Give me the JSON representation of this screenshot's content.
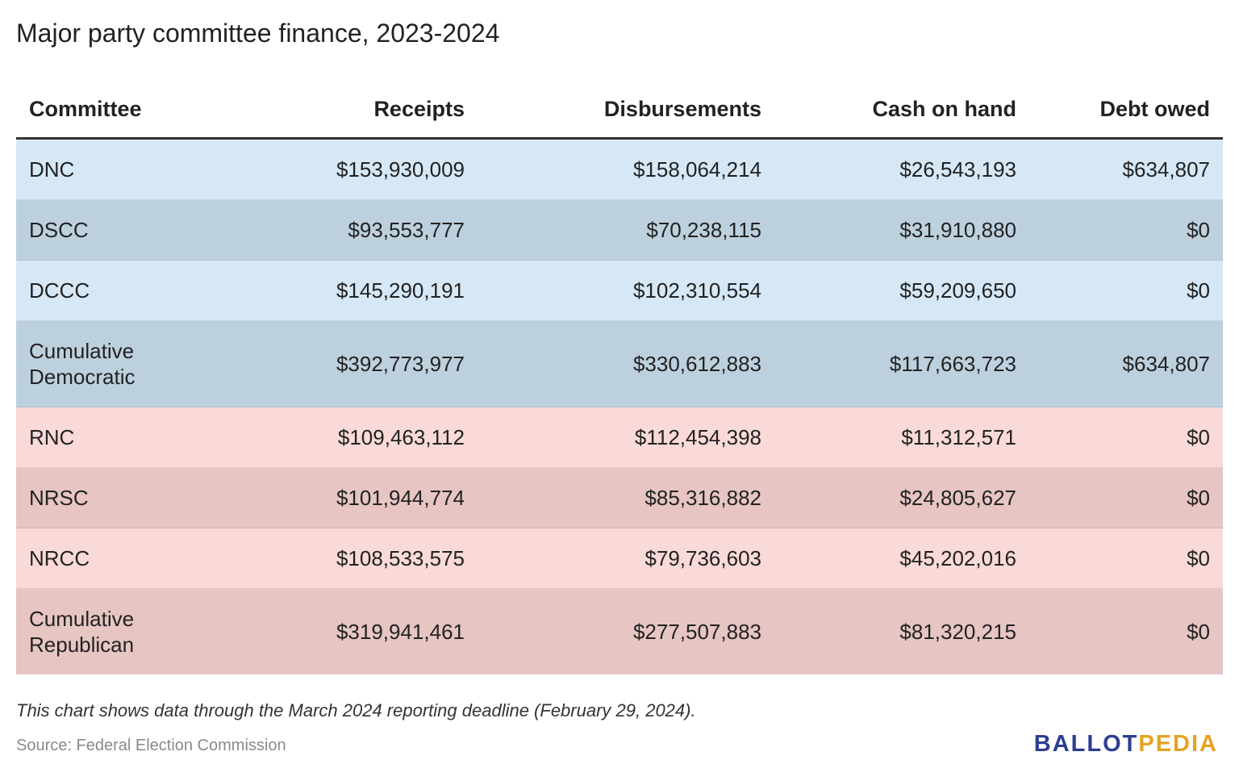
{
  "title": "Major party committee finance, 2023-2024",
  "table": {
    "header": [
      "Committee",
      "Receipts",
      "Disbursements",
      "Cash on hand",
      "Debt owed"
    ],
    "rows": [
      [
        "DNC",
        "$153,930,009",
        "$158,064,214",
        "$26,543,193",
        "$634,807"
      ],
      [
        "DSCC",
        "$93,553,777",
        "$70,238,115",
        "$31,910,880",
        "$0"
      ],
      [
        "DCCC",
        "$145,290,191",
        "$102,310,554",
        "$59,209,650",
        "$0"
      ],
      [
        "Cumulative Democratic",
        "$392,773,977",
        "$330,612,883",
        "$117,663,723",
        "$634,807"
      ],
      [
        "RNC",
        "$109,463,112",
        "$112,454,398",
        "$11,312,571",
        "$0"
      ],
      [
        "NRSC",
        "$101,944,774",
        "$85,316,882",
        "$24,805,627",
        "$0"
      ],
      [
        "NRCC",
        "$108,533,575",
        "$79,736,603",
        "$45,202,016",
        "$0"
      ],
      [
        "Cumulative Republican",
        "$319,941,461",
        "$277,507,883",
        "$81,320,215",
        "$0"
      ]
    ]
  },
  "note": "This chart shows data through the March 2024 reporting deadline (February 29, 2024).",
  "source": "Source: Federal Election Commission",
  "logo": {
    "first": "BALLOT",
    "second": "PEDIA"
  }
}
